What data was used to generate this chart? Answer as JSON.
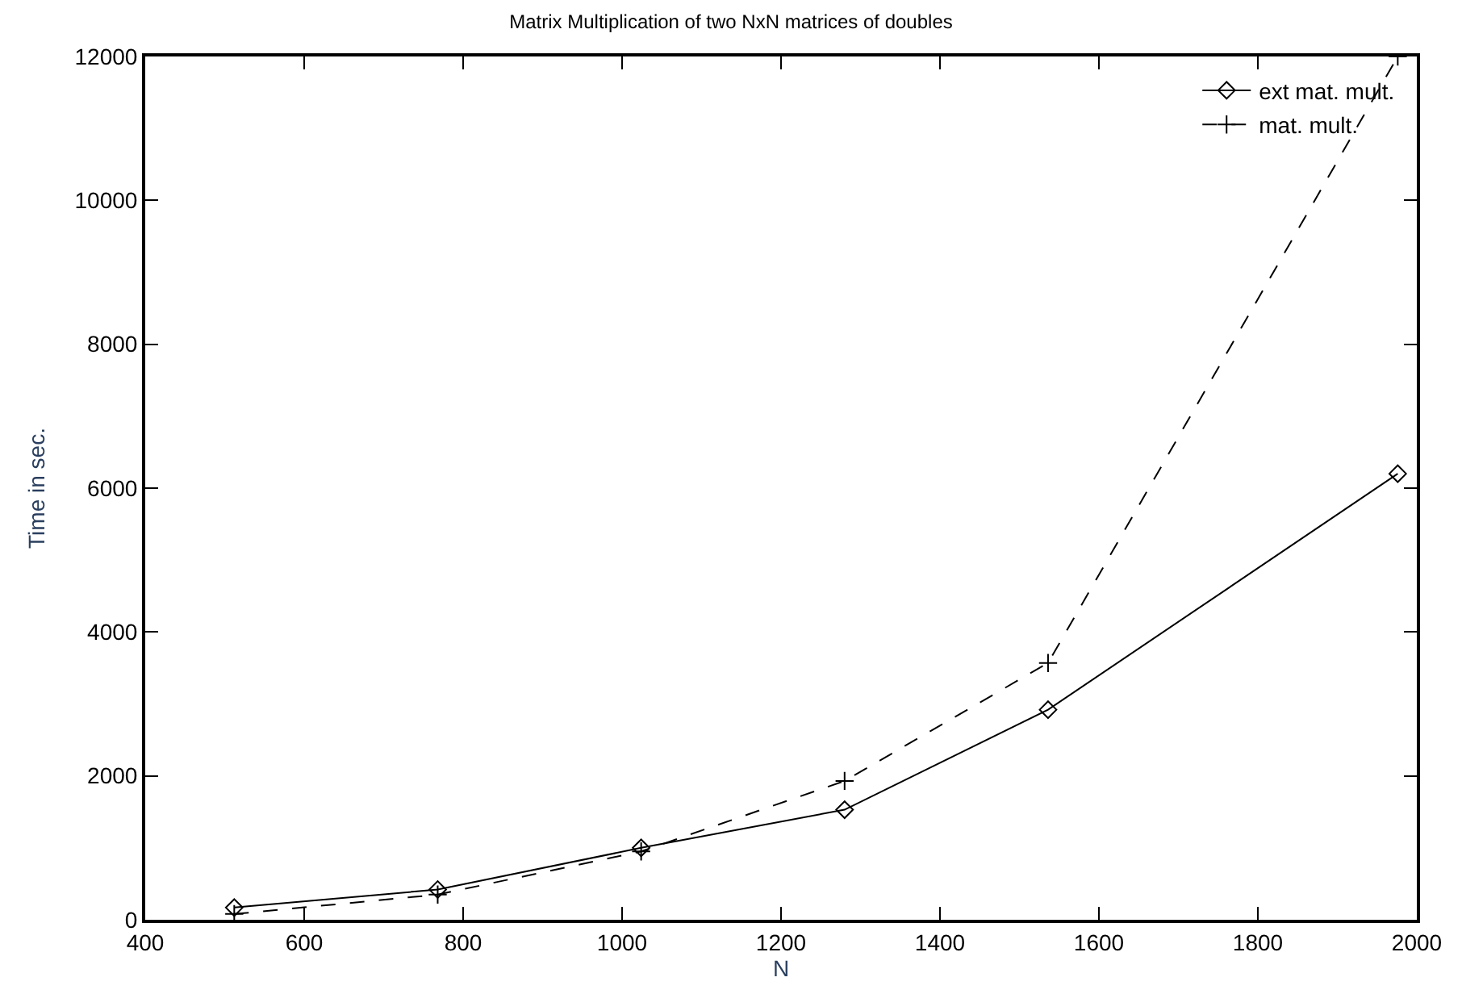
{
  "chart_data": {
    "type": "line",
    "title": "Matrix Multiplication of two NxN matrices of doubles",
    "xlabel": "N",
    "ylabel": "Time in sec.",
    "xlim": [
      400,
      2000
    ],
    "xticks": [
      400,
      600,
      800,
      1000,
      1200,
      1400,
      1600,
      1800,
      2000
    ],
    "ylim": [
      0,
      12000
    ],
    "yticks": [
      0,
      2000,
      4000,
      6000,
      8000,
      10000,
      12000
    ],
    "grid": false,
    "legend": "top right",
    "series": [
      {
        "name": "ext mat. mult.",
        "color": "#000000",
        "marker": "diamond",
        "line_style": "solid",
        "x": [
          512,
          768,
          1024,
          1280,
          1536,
          1976
        ],
        "values": [
          170,
          420,
          1000,
          1530,
          2920,
          6200
        ]
      },
      {
        "name": "mat. mult.",
        "color": "#000000",
        "marker": "cross",
        "line_style": "dashed",
        "x": [
          512,
          768,
          1024,
          1280,
          1536,
          1976
        ],
        "values": [
          80,
          350,
          950,
          1930,
          3570,
          12000
        ]
      }
    ]
  }
}
